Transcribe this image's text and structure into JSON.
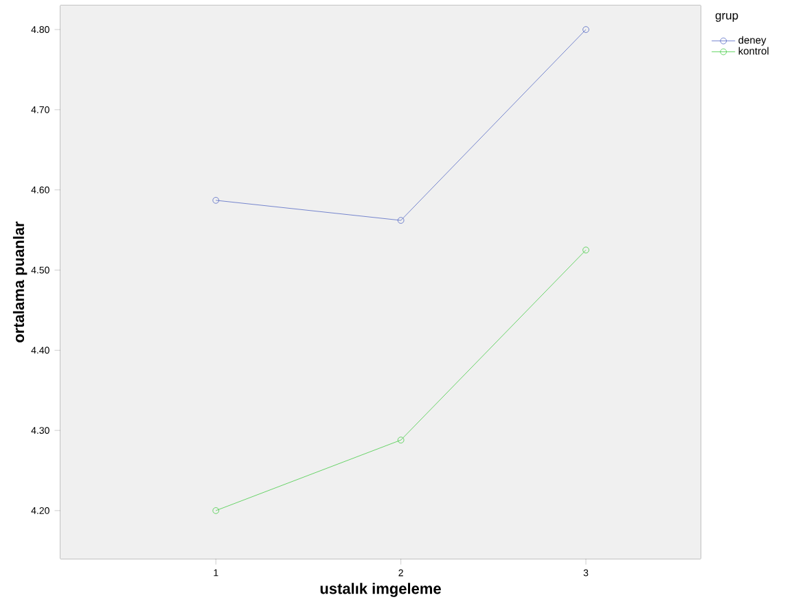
{
  "chart_data": {
    "type": "line",
    "xlabel": "ustalık imgeleme",
    "ylabel": "ortalama puanlar",
    "legend_title": "grup",
    "x": [
      1,
      2,
      3
    ],
    "series": [
      {
        "name": "deney",
        "color": "#5468c4",
        "values": [
          4.587,
          4.562,
          4.8
        ]
      },
      {
        "name": "kontrol",
        "color": "#44cc44",
        "values": [
          4.2,
          4.288,
          4.525
        ]
      }
    ],
    "xlim": [
      0.16,
      3.62
    ],
    "xticks": [
      1,
      2,
      3
    ],
    "ylim": [
      4.14,
      4.83
    ],
    "yticks": [
      {
        "value": 4.2,
        "label": "4.20"
      },
      {
        "value": 4.3,
        "label": "4.30"
      },
      {
        "value": 4.4,
        "label": "4.40"
      },
      {
        "value": 4.5,
        "label": "4.50"
      },
      {
        "value": 4.6,
        "label": "4.60"
      },
      {
        "value": 4.7,
        "label": "4.70"
      },
      {
        "value": 4.8,
        "label": "4.80"
      }
    ],
    "legend": "top right",
    "marker": "circle",
    "line_style": "solid"
  }
}
